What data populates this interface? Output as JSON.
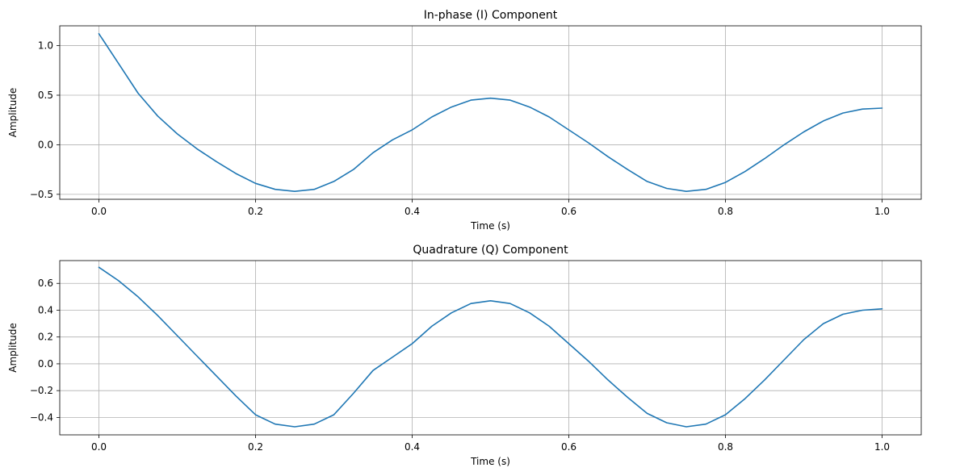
{
  "chart_data": [
    {
      "type": "line",
      "title": "In-phase (I) Component",
      "xlabel": "Time (s)",
      "ylabel": "Amplitude",
      "xlim": [
        -0.05,
        1.05
      ],
      "ylim": [
        -0.55,
        1.2
      ],
      "xticks": [
        0.0,
        0.2,
        0.4,
        0.6,
        0.8,
        1.0
      ],
      "xtick_labels": [
        "0.0",
        "0.2",
        "0.4",
        "0.6",
        "0.8",
        "1.0"
      ],
      "yticks": [
        -0.5,
        0.0,
        0.5,
        1.0
      ],
      "ytick_labels": [
        "−0.5",
        "0.0",
        "0.5",
        "1.0"
      ],
      "grid": true,
      "color": "#1f77b4",
      "series": [
        {
          "x": [
            0.0,
            0.025,
            0.05,
            0.075,
            0.1,
            0.125,
            0.15,
            0.175,
            0.2,
            0.225,
            0.25,
            0.275,
            0.3,
            0.325,
            0.35,
            0.375,
            0.4,
            0.425,
            0.45,
            0.475,
            0.5,
            0.525,
            0.55,
            0.575,
            0.6,
            0.625,
            0.65,
            0.675,
            0.7,
            0.725,
            0.75,
            0.775,
            0.8,
            0.825,
            0.85,
            0.875,
            0.9,
            0.925,
            0.95,
            0.975,
            1.0
          ],
          "y": [
            1.12,
            0.82,
            0.52,
            0.29,
            0.11,
            -0.04,
            -0.17,
            -0.29,
            -0.39,
            -0.45,
            -0.47,
            -0.45,
            -0.37,
            -0.25,
            -0.08,
            0.05,
            0.15,
            0.28,
            0.38,
            0.45,
            0.47,
            0.45,
            0.38,
            0.28,
            0.15,
            0.02,
            -0.12,
            -0.25,
            -0.37,
            -0.44,
            -0.47,
            -0.45,
            -0.38,
            -0.27,
            -0.14,
            0.0,
            0.13,
            0.24,
            0.32,
            0.36,
            0.37
          ]
        }
      ]
    },
    {
      "type": "line",
      "title": "Quadrature (Q) Component",
      "xlabel": "Time (s)",
      "ylabel": "Amplitude",
      "xlim": [
        -0.05,
        1.05
      ],
      "ylim": [
        -0.53,
        0.77
      ],
      "xticks": [
        0.0,
        0.2,
        0.4,
        0.6,
        0.8,
        1.0
      ],
      "xtick_labels": [
        "0.0",
        "0.2",
        "0.4",
        "0.6",
        "0.8",
        "1.0"
      ],
      "yticks": [
        -0.4,
        -0.2,
        0.0,
        0.2,
        0.4,
        0.6
      ],
      "ytick_labels": [
        "−0.4",
        "−0.2",
        "0.0",
        "0.2",
        "0.4",
        "0.6"
      ],
      "grid": true,
      "color": "#1f77b4",
      "series": [
        {
          "x": [
            0.0,
            0.025,
            0.05,
            0.075,
            0.1,
            0.125,
            0.15,
            0.175,
            0.2,
            0.225,
            0.25,
            0.275,
            0.3,
            0.325,
            0.35,
            0.375,
            0.4,
            0.425,
            0.45,
            0.475,
            0.5,
            0.525,
            0.55,
            0.575,
            0.6,
            0.625,
            0.65,
            0.675,
            0.7,
            0.725,
            0.75,
            0.775,
            0.8,
            0.825,
            0.85,
            0.875,
            0.9,
            0.925,
            0.95,
            0.975,
            1.0
          ],
          "y": [
            0.72,
            0.62,
            0.5,
            0.36,
            0.21,
            0.06,
            -0.09,
            -0.24,
            -0.38,
            -0.45,
            -0.47,
            -0.45,
            -0.38,
            -0.22,
            -0.05,
            0.05,
            0.15,
            0.28,
            0.38,
            0.45,
            0.47,
            0.45,
            0.38,
            0.28,
            0.15,
            0.02,
            -0.12,
            -0.25,
            -0.37,
            -0.44,
            -0.47,
            -0.45,
            -0.38,
            -0.26,
            -0.12,
            0.03,
            0.18,
            0.3,
            0.37,
            0.4,
            0.41
          ]
        }
      ]
    }
  ]
}
